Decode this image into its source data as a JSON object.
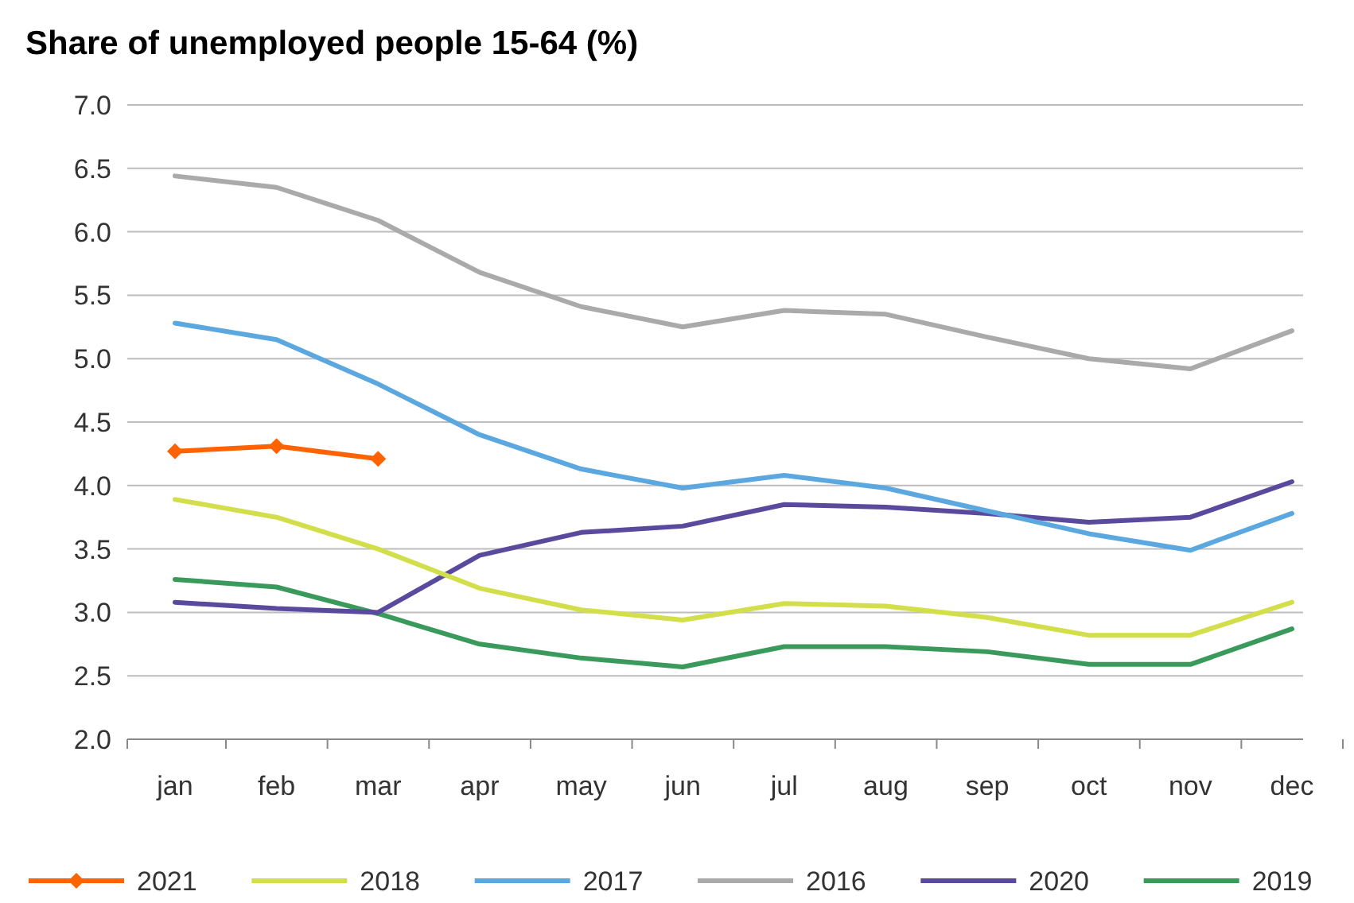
{
  "chart_data": {
    "type": "line",
    "title": "Share of unemployed people 15-64 (%)",
    "categories": [
      "jan",
      "feb",
      "mar",
      "apr",
      "may",
      "jun",
      "jul",
      "aug",
      "sep",
      "oct",
      "nov",
      "dec"
    ],
    "series": [
      {
        "name": "2021",
        "color": "#ff6200",
        "marker": "diamond",
        "values": [
          4.27,
          4.31,
          4.21,
          null,
          null,
          null,
          null,
          null,
          null,
          null,
          null,
          null
        ]
      },
      {
        "name": "2018",
        "color": "#d2df4a",
        "values": [
          3.89,
          3.75,
          3.5,
          3.19,
          3.02,
          2.94,
          3.07,
          3.05,
          2.96,
          2.82,
          2.82,
          3.08
        ]
      },
      {
        "name": "2017",
        "color": "#5ba7e0",
        "values": [
          5.28,
          5.15,
          4.8,
          4.4,
          4.13,
          3.98,
          4.08,
          3.98,
          3.8,
          3.62,
          3.49,
          3.78
        ]
      },
      {
        "name": "2016",
        "color": "#aaaaaa",
        "values": [
          6.44,
          6.35,
          6.09,
          5.68,
          5.41,
          5.25,
          5.38,
          5.35,
          5.17,
          5.0,
          4.92,
          5.22
        ]
      },
      {
        "name": "2020",
        "color": "#5a4a9e",
        "values": [
          3.08,
          3.03,
          3.0,
          3.45,
          3.63,
          3.68,
          3.85,
          3.83,
          3.78,
          3.71,
          3.75,
          4.03
        ]
      },
      {
        "name": "2019",
        "color": "#3a9a5b",
        "values": [
          3.26,
          3.2,
          2.99,
          2.75,
          2.64,
          2.57,
          2.73,
          2.73,
          2.69,
          2.59,
          2.59,
          2.87
        ]
      }
    ],
    "ylim": [
      2,
      7
    ],
    "yticks": [
      {
        "value": 2,
        "label": "2.0"
      },
      {
        "value": 2.5,
        "label": "2.5"
      },
      {
        "value": 3,
        "label": "3.0"
      },
      {
        "value": 3.5,
        "label": "3.5"
      },
      {
        "value": 4,
        "label": "4.0"
      },
      {
        "value": 4.5,
        "label": "4.5"
      },
      {
        "value": 5,
        "label": "5.0"
      },
      {
        "value": 5.5,
        "label": "5.5"
      },
      {
        "value": 6,
        "label": "6.0"
      },
      {
        "value": 6.5,
        "label": "6.5"
      },
      {
        "value": 7,
        "label": "7.0"
      }
    ],
    "grid": "y",
    "legend": "bottom",
    "marker": "none",
    "line_style": "solid"
  }
}
